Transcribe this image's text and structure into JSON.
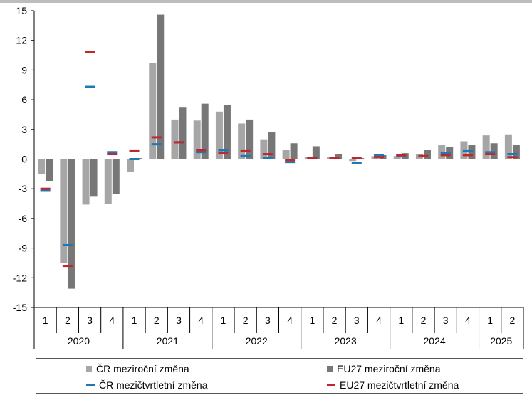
{
  "chart_data": {
    "type": "bar",
    "ylim": [
      -15,
      15
    ],
    "yticks": [
      "15",
      "12",
      "9",
      "6",
      "3",
      "0",
      "-3",
      "-6",
      "-9",
      "-12",
      "-15"
    ],
    "grid": false,
    "legend_position": "bottom",
    "quarters": [
      "1",
      "2",
      "3",
      "4",
      "1",
      "2",
      "3",
      "4",
      "1",
      "2",
      "3",
      "4",
      "1",
      "2",
      "3",
      "4",
      "1",
      "2",
      "3",
      "4",
      "1",
      "2"
    ],
    "years": [
      {
        "label": "2020",
        "span": 4
      },
      {
        "label": "2021",
        "span": 4
      },
      {
        "label": "2022",
        "span": 4
      },
      {
        "label": "2023",
        "span": 4
      },
      {
        "label": "2024",
        "span": 4
      },
      {
        "label": "2025",
        "span": 2
      }
    ],
    "series": [
      {
        "name": "ČR meziroční změna",
        "kind": "bar",
        "color": "#a6a6a6",
        "values": [
          -1.5,
          -10.5,
          -4.6,
          -4.5,
          -1.3,
          9.7,
          4.0,
          3.9,
          4.8,
          3.6,
          2.0,
          0.9,
          0.2,
          0.2,
          -0.2,
          0.3,
          0.3,
          0.5,
          1.4,
          1.8,
          2.4,
          2.5
        ]
      },
      {
        "name": "EU27 meziroční změna",
        "kind": "bar",
        "color": "#777777",
        "values": [
          -2.2,
          -13.1,
          -3.8,
          -3.5,
          0.1,
          14.6,
          5.2,
          5.6,
          5.5,
          4.0,
          2.7,
          1.6,
          1.3,
          0.5,
          0.1,
          0.4,
          0.6,
          0.9,
          1.2,
          1.4,
          1.6,
          1.4
        ]
      },
      {
        "name": "ČR mezičtvrtletní změna",
        "kind": "marker",
        "color": "#1f77b4",
        "values": [
          -3.2,
          -8.7,
          7.3,
          0.7,
          0.0,
          1.5,
          1.7,
          0.7,
          0.9,
          0.3,
          0.1,
          -0.3,
          0.1,
          0.1,
          -0.4,
          0.4,
          0.3,
          0.3,
          0.6,
          0.8,
          0.7,
          0.5
        ]
      },
      {
        "name": "EU27 mezičtvrtletní změna",
        "kind": "marker",
        "color": "#c0272d",
        "values": [
          -3.0,
          -10.8,
          10.8,
          0.5,
          0.8,
          2.2,
          1.7,
          0.9,
          0.6,
          0.8,
          0.5,
          -0.1,
          0.1,
          0.1,
          0.1,
          0.2,
          0.4,
          0.3,
          0.4,
          0.4,
          0.5,
          0.2
        ]
      }
    ]
  }
}
